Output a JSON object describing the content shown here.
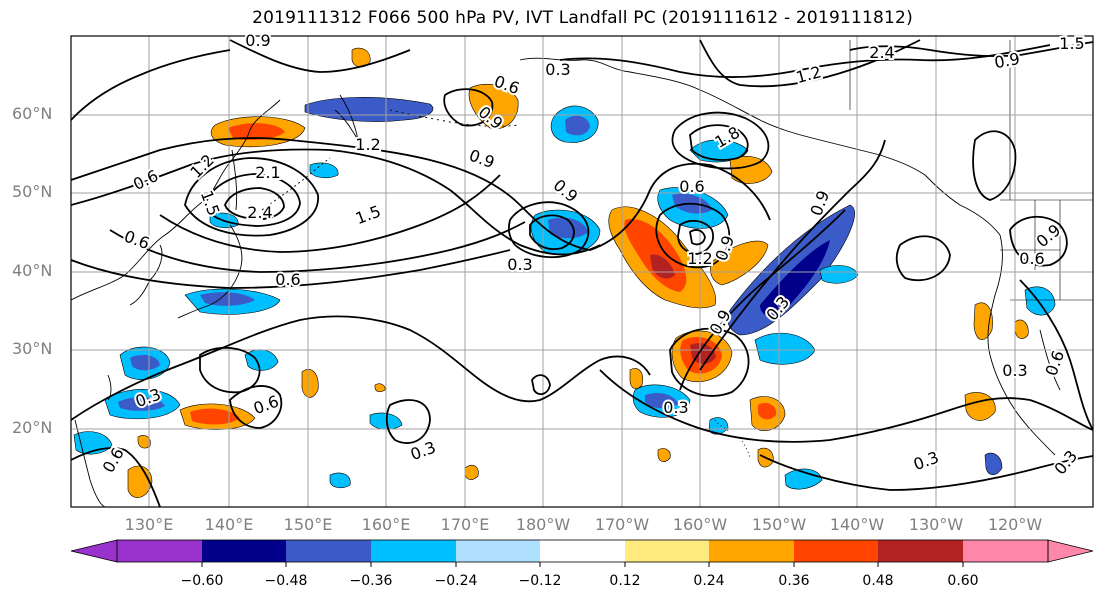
{
  "title": "2019111312 F066 500 hPa PV, IVT Landfall PC (2019111612 - 2019111812)",
  "lat_labels": [
    "60°N",
    "50°N",
    "40°N",
    "30°N",
    "20°N"
  ],
  "lon_labels": [
    "130°E",
    "140°E",
    "150°E",
    "160°E",
    "170°E",
    "180°W",
    "170°W",
    "160°W",
    "150°W",
    "140°W",
    "130°W",
    "120°W"
  ],
  "contour_labels": [
    "0.9",
    "0.3",
    "0.6",
    "0.9",
    "1.2",
    "0.9",
    "1.5",
    "0.6",
    "1.2",
    "2.1",
    "2.4",
    "1.5",
    "0.9",
    "0.6",
    "0.6",
    "0.3",
    "0.6",
    "0.9",
    "0.9",
    "0.9",
    "0.3",
    "0.6",
    "0.3",
    "0.3",
    "0.6",
    "0.3",
    "0.3",
    "0.3",
    "1.2",
    "1.8",
    "0.3",
    "1.2",
    "0.9",
    "0.6",
    "1.5",
    "0.9",
    "0.6",
    "2.4"
  ],
  "colorbar": {
    "colors": [
      "#9932cc",
      "#00008b",
      "#3a5bc8",
      "#00bfff",
      "#b0e0ff",
      "#ffffff",
      "#ffea7f",
      "#ffa500",
      "#ff4500",
      "#b22222",
      "#ff88aa"
    ],
    "tick_labels": [
      "−0.60",
      "−0.48",
      "−0.36",
      "−0.24",
      "−0.12",
      "0.12",
      "0.24",
      "0.36",
      "0.48",
      "0.60"
    ]
  }
}
